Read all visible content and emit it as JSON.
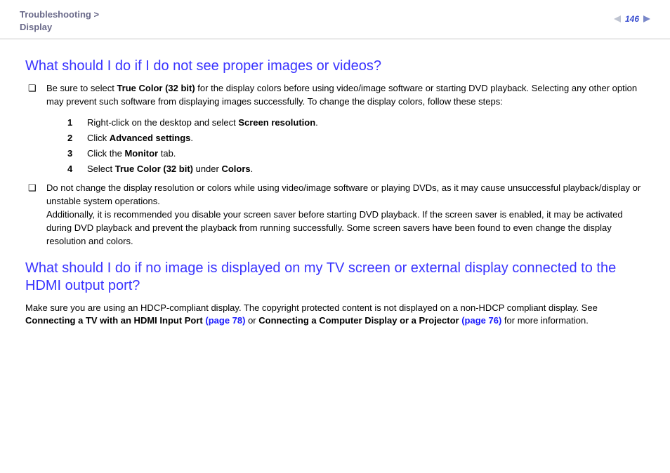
{
  "header": {
    "breadcrumb_parent": "Troubleshooting",
    "breadcrumb_sep": ">",
    "breadcrumb_child": "Display",
    "page_number": "146"
  },
  "section1": {
    "title": "What should I do if I do not see proper images or videos?",
    "bullet1": {
      "pre": "Be sure to select ",
      "bold1": "True Color (32 bit)",
      "post": " for the display colors before using video/image software or starting DVD playback. Selecting any other option may prevent such software from displaying images successfully. To change the display colors, follow these steps:"
    },
    "steps": [
      {
        "num": "1",
        "pre": "Right-click on the desktop and select ",
        "bold": "Screen resolution",
        "post": "."
      },
      {
        "num": "2",
        "pre": "Click ",
        "bold": "Advanced settings",
        "post": "."
      },
      {
        "num": "3",
        "pre": "Click the ",
        "bold": "Monitor",
        "post": " tab."
      },
      {
        "num": "4",
        "pre": "Select ",
        "bold": "True Color (32 bit)",
        "mid": " under ",
        "bold2": "Colors",
        "post": "."
      }
    ],
    "bullet2": {
      "line1": "Do not change the display resolution or colors while using video/image software or playing DVDs, as it may cause unsuccessful playback/display or unstable system operations.",
      "line2": "Additionally, it is recommended you disable your screen saver before starting DVD playback. If the screen saver is enabled, it may be activated during DVD playback and prevent the playback from running successfully. Some screen savers have been found to even change the display resolution and colors."
    }
  },
  "section2": {
    "title": "What should I do if no image is displayed on my TV screen or external display connected to the HDMI output port?",
    "para": {
      "t1": "Make sure you are using an HDCP-compliant display. The copyright protected content is not displayed on a non-HDCP compliant display. See ",
      "b1": "Connecting a TV with an HDMI Input Port ",
      "l1": "(page 78)",
      "t2": " or ",
      "b2": "Connecting a Computer Display or a Projector ",
      "l2": "(page 76)",
      "t3": " for more information."
    }
  },
  "bullet_glyph": "❑"
}
